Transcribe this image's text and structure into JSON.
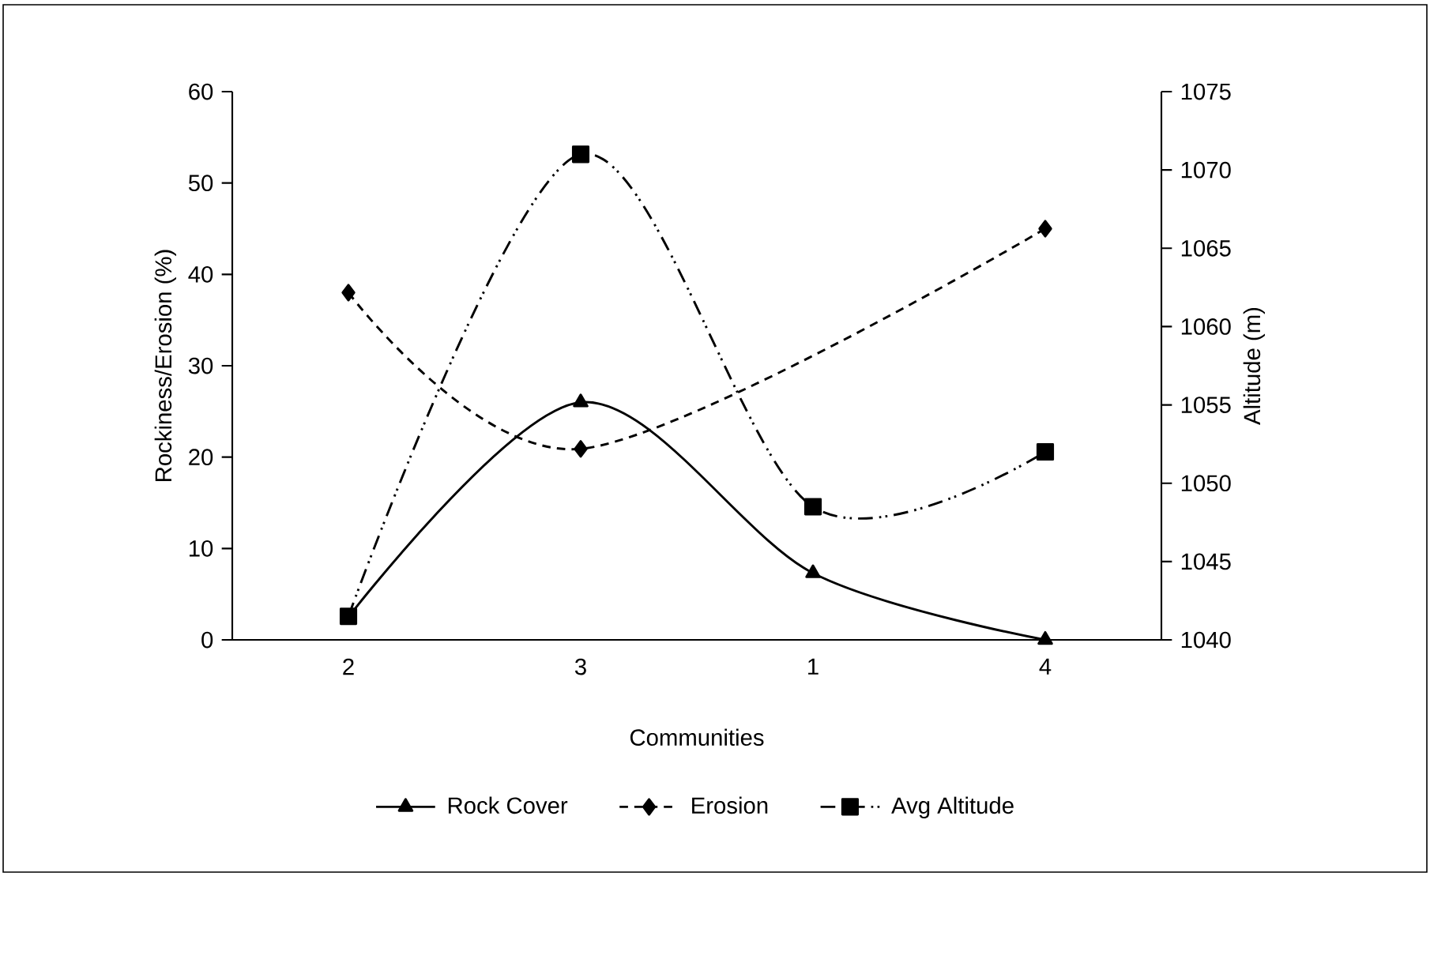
{
  "chart_data": {
    "type": "line",
    "xlabel": "Communities",
    "ylabel": "Rockiness/Erosion (%)",
    "y2label": "Altitude (m)",
    "categories": [
      "2",
      "3",
      "1",
      "4"
    ],
    "series": [
      {
        "name": "Rock Cover",
        "color": "#000000",
        "values": [
          2.5,
          26,
          7.3,
          0
        ],
        "marker": "triangle",
        "line_style": "solid"
      },
      {
        "name": "Erosion",
        "color": "#000000",
        "values": [
          38,
          20.9,
          null,
          45
        ],
        "marker": "diamond",
        "line_style": "dashed"
      },
      {
        "name": "Avg Altitude",
        "color": "#000000",
        "values": [
          1041.5,
          1071,
          1048.5,
          1052
        ],
        "marker": "square",
        "line_style": "dashdotdotted",
        "axis": "y2"
      }
    ],
    "ylim": [
      0,
      60
    ],
    "yticks": [
      0,
      10,
      20,
      30,
      40,
      50,
      60
    ],
    "y2lim": [
      1040,
      1075
    ],
    "y2ticks": [
      1040,
      1045,
      1050,
      1055,
      1060,
      1065,
      1070,
      1075
    ],
    "grid": false,
    "legend": "bottom"
  }
}
